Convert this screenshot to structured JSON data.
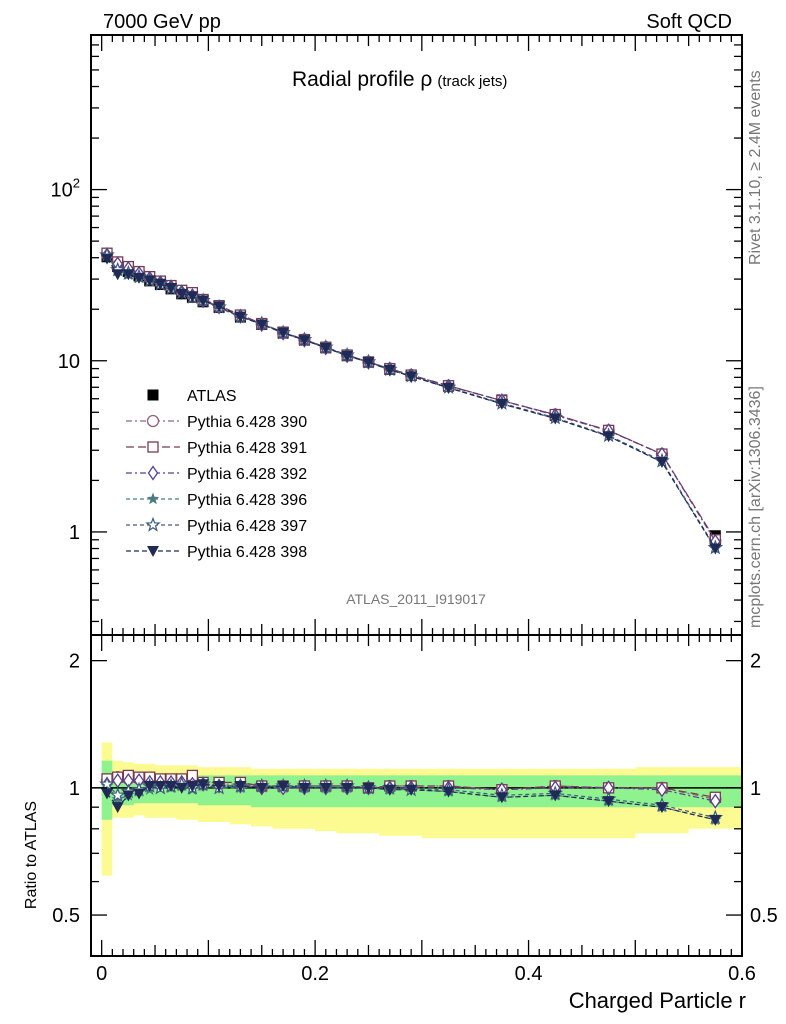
{
  "header": {
    "left": "7000 GeV pp",
    "right": "Soft QCD"
  },
  "side_text": {
    "rivet": "Rivet 3.1.10, ≥ 2.4M events",
    "mcplots": "mcplots.cern.ch [arXiv:1306.3436]"
  },
  "watermark": "ATLAS_2011_I919017",
  "colors": {
    "data": "#000000",
    "p390": "#8e6383",
    "p391": "#7a3a4e",
    "p392": "#5a3e8e",
    "p396": "#4a7c80",
    "p397": "#3d5a80",
    "p398": "#1f2a55",
    "band_stat": "#8ef28e",
    "band_total": "#fbfb91"
  },
  "chart_data": [
    {
      "type": "line",
      "title": "Radial profile ρ",
      "title_suffix": "(track jets)",
      "xlabel": "Charged Particle r",
      "ylabel": "",
      "yscale": "log",
      "xlim": [
        -0.01,
        0.6
      ],
      "ylim": [
        0.25,
        800
      ],
      "ytick_labels": [
        "1",
        "10",
        "10²"
      ],
      "grid": false,
      "legend_position": "left-middle",
      "x": [
        0.005,
        0.015,
        0.025,
        0.035,
        0.045,
        0.055,
        0.065,
        0.075,
        0.085,
        0.095,
        0.11,
        0.13,
        0.15,
        0.17,
        0.19,
        0.21,
        0.23,
        0.25,
        0.27,
        0.29,
        0.325,
        0.375,
        0.425,
        0.475,
        0.525,
        0.575
      ],
      "series": [
        {
          "name": "ATLAS",
          "marker": "filled-square",
          "values": [
            40.5,
            35.5,
            33.2,
            31.3,
            29.3,
            27.9,
            26.3,
            24.6,
            23.5,
            22.1,
            20.5,
            18.0,
            16.3,
            14.5,
            13.2,
            11.9,
            10.7,
            9.8,
            8.9,
            8.2,
            7.1,
            5.9,
            4.8,
            3.9,
            2.85,
            0.95
          ]
        },
        {
          "name": "Pythia 6.428 390",
          "marker": "open-circle",
          "values": [
            42.0,
            37.5,
            35.0,
            32.8,
            30.5,
            29.0,
            27.2,
            25.5,
            24.2,
            22.6,
            20.8,
            18.3,
            16.4,
            14.6,
            13.3,
            12.0,
            10.8,
            9.85,
            9.0,
            8.25,
            7.15,
            5.85,
            4.85,
            3.92,
            2.85,
            0.89
          ]
        },
        {
          "name": "Pythia 6.428 391",
          "marker": "open-square",
          "values": [
            42.5,
            37.8,
            35.5,
            33.2,
            31.0,
            29.2,
            27.5,
            25.8,
            25.0,
            22.8,
            21.0,
            18.5,
            16.5,
            14.7,
            13.3,
            12.0,
            10.8,
            9.85,
            9.0,
            8.25,
            7.15,
            5.85,
            4.85,
            3.92,
            2.85,
            0.9
          ]
        },
        {
          "name": "Pythia 6.428 392",
          "marker": "open-diamond",
          "values": [
            41.5,
            36.8,
            34.6,
            32.4,
            30.3,
            28.6,
            27.0,
            25.2,
            24.0,
            22.4,
            20.6,
            18.2,
            16.3,
            14.5,
            13.2,
            11.9,
            10.7,
            9.8,
            8.95,
            8.2,
            7.1,
            5.85,
            4.8,
            3.9,
            2.84,
            0.88
          ]
        },
        {
          "name": "Pythia 6.428 396",
          "marker": "filled-star",
          "values": [
            41.0,
            33.5,
            31.8,
            30.5,
            29.0,
            27.8,
            26.2,
            24.8,
            23.3,
            22.3,
            20.4,
            18.0,
            16.4,
            14.5,
            13.2,
            11.9,
            10.7,
            9.8,
            8.85,
            8.1,
            6.95,
            5.6,
            4.6,
            3.63,
            2.57,
            0.8
          ]
        },
        {
          "name": "Pythia 6.428 397",
          "marker": "open-star",
          "values": [
            41.5,
            34.0,
            32.5,
            31.0,
            29.5,
            28.0,
            26.5,
            25.0,
            23.5,
            22.5,
            20.6,
            18.1,
            16.5,
            14.6,
            13.3,
            12.0,
            10.8,
            9.85,
            8.9,
            8.15,
            7.0,
            5.65,
            4.65,
            3.66,
            2.6,
            0.81
          ]
        },
        {
          "name": "Pythia 6.428 398",
          "marker": "filled-triangle-down",
          "values": [
            39.5,
            32.0,
            32.0,
            30.5,
            29.5,
            28.2,
            26.6,
            24.6,
            23.8,
            22.5,
            20.8,
            18.1,
            16.3,
            14.6,
            13.2,
            11.9,
            10.7,
            9.8,
            8.85,
            8.1,
            6.95,
            5.6,
            4.6,
            3.62,
            2.56,
            0.8
          ]
        }
      ]
    },
    {
      "type": "line",
      "title": "",
      "xlabel": "Charged Particle r",
      "ylabel": "Ratio to ATLAS",
      "yscale": "log",
      "xlim": [
        -0.01,
        0.6
      ],
      "ylim": [
        0.4,
        2.3
      ],
      "ytick_labels": [
        "0.5",
        "1",
        "2"
      ],
      "xtick_labels": [
        "0",
        "0.2",
        "0.4",
        "0.6"
      ],
      "grid": false,
      "reference_line": 1,
      "band_edges": [
        0.0,
        0.01,
        0.02,
        0.03,
        0.04,
        0.05,
        0.06,
        0.07,
        0.08,
        0.09,
        0.1,
        0.12,
        0.14,
        0.16,
        0.18,
        0.2,
        0.22,
        0.24,
        0.26,
        0.28,
        0.3,
        0.35,
        0.4,
        0.45,
        0.5,
        0.55,
        0.6
      ],
      "band_total": {
        "lo": [
          0.62,
          0.85,
          0.85,
          0.86,
          0.85,
          0.85,
          0.85,
          0.84,
          0.84,
          0.83,
          0.83,
          0.82,
          0.81,
          0.8,
          0.8,
          0.79,
          0.78,
          0.78,
          0.77,
          0.77,
          0.76,
          0.76,
          0.76,
          0.76,
          0.78,
          0.8
        ],
        "hi": [
          1.28,
          1.16,
          1.15,
          1.14,
          1.14,
          1.13,
          1.13,
          1.13,
          1.13,
          1.12,
          1.12,
          1.12,
          1.11,
          1.11,
          1.11,
          1.11,
          1.11,
          1.11,
          1.11,
          1.11,
          1.11,
          1.11,
          1.11,
          1.11,
          1.12,
          1.12
        ]
      },
      "band_stat": {
        "lo": [
          0.84,
          0.91,
          0.91,
          0.92,
          0.92,
          0.92,
          0.92,
          0.92,
          0.92,
          0.91,
          0.91,
          0.91,
          0.9,
          0.9,
          0.9,
          0.9,
          0.9,
          0.9,
          0.9,
          0.9,
          0.9,
          0.9,
          0.9,
          0.9,
          0.9,
          0.9
        ],
        "hi": [
          1.16,
          1.09,
          1.08,
          1.08,
          1.08,
          1.08,
          1.08,
          1.08,
          1.08,
          1.07,
          1.07,
          1.07,
          1.07,
          1.07,
          1.07,
          1.07,
          1.07,
          1.07,
          1.07,
          1.07,
          1.07,
          1.07,
          1.07,
          1.07,
          1.07,
          1.07
        ]
      },
      "series": [
        {
          "name": "Pythia 6.428 390",
          "marker": "open-circle",
          "values": [
            1.04,
            1.06,
            1.05,
            1.05,
            1.04,
            1.04,
            1.03,
            1.04,
            1.03,
            1.02,
            1.02,
            1.02,
            1.01,
            1.01,
            1.01,
            1.01,
            1.01,
            1.0,
            1.01,
            1.01,
            1.01,
            0.99,
            1.01,
            1.0,
            1.0,
            0.94
          ]
        },
        {
          "name": "Pythia 6.428 391",
          "marker": "open-square",
          "values": [
            1.05,
            1.06,
            1.07,
            1.06,
            1.06,
            1.05,
            1.05,
            1.05,
            1.07,
            1.03,
            1.03,
            1.03,
            1.01,
            1.01,
            1.01,
            1.01,
            1.01,
            1.0,
            1.01,
            1.01,
            1.01,
            0.99,
            1.01,
            1.0,
            1.0,
            0.95
          ]
        },
        {
          "name": "Pythia 6.428 392",
          "marker": "open-diamond",
          "values": [
            1.02,
            1.04,
            1.04,
            1.04,
            1.03,
            1.03,
            1.03,
            1.03,
            1.02,
            1.02,
            1.01,
            1.01,
            1.0,
            1.0,
            1.0,
            1.0,
            1.0,
            1.0,
            1.0,
            1.0,
            1.0,
            0.99,
            1.0,
            1.0,
            0.99,
            0.93
          ]
        },
        {
          "name": "Pythia 6.428 396",
          "marker": "filled-star",
          "values": [
            1.01,
            0.94,
            0.96,
            0.98,
            0.99,
            1.0,
            1.0,
            1.01,
            0.99,
            1.01,
            1.0,
            1.0,
            1.01,
            1.0,
            1.0,
            1.0,
            1.0,
            1.0,
            0.99,
            0.99,
            0.98,
            0.95,
            0.96,
            0.93,
            0.9,
            0.84
          ]
        },
        {
          "name": "Pythia 6.428 397",
          "marker": "open-star",
          "values": [
            1.02,
            0.96,
            0.98,
            0.99,
            1.01,
            1.0,
            1.01,
            1.02,
            1.0,
            1.02,
            1.0,
            1.01,
            1.01,
            1.01,
            1.01,
            1.01,
            1.01,
            1.0,
            1.0,
            0.99,
            0.99,
            0.96,
            0.97,
            0.94,
            0.91,
            0.85
          ]
        },
        {
          "name": "Pythia 6.428 398",
          "marker": "filled-triangle-down",
          "values": [
            0.97,
            0.9,
            0.96,
            0.97,
            1.01,
            1.01,
            1.01,
            1.0,
            1.01,
            1.02,
            1.01,
            1.01,
            1.0,
            1.01,
            1.0,
            1.0,
            1.0,
            1.0,
            0.99,
            0.99,
            0.98,
            0.95,
            0.96,
            0.93,
            0.9,
            0.84
          ]
        }
      ]
    }
  ]
}
